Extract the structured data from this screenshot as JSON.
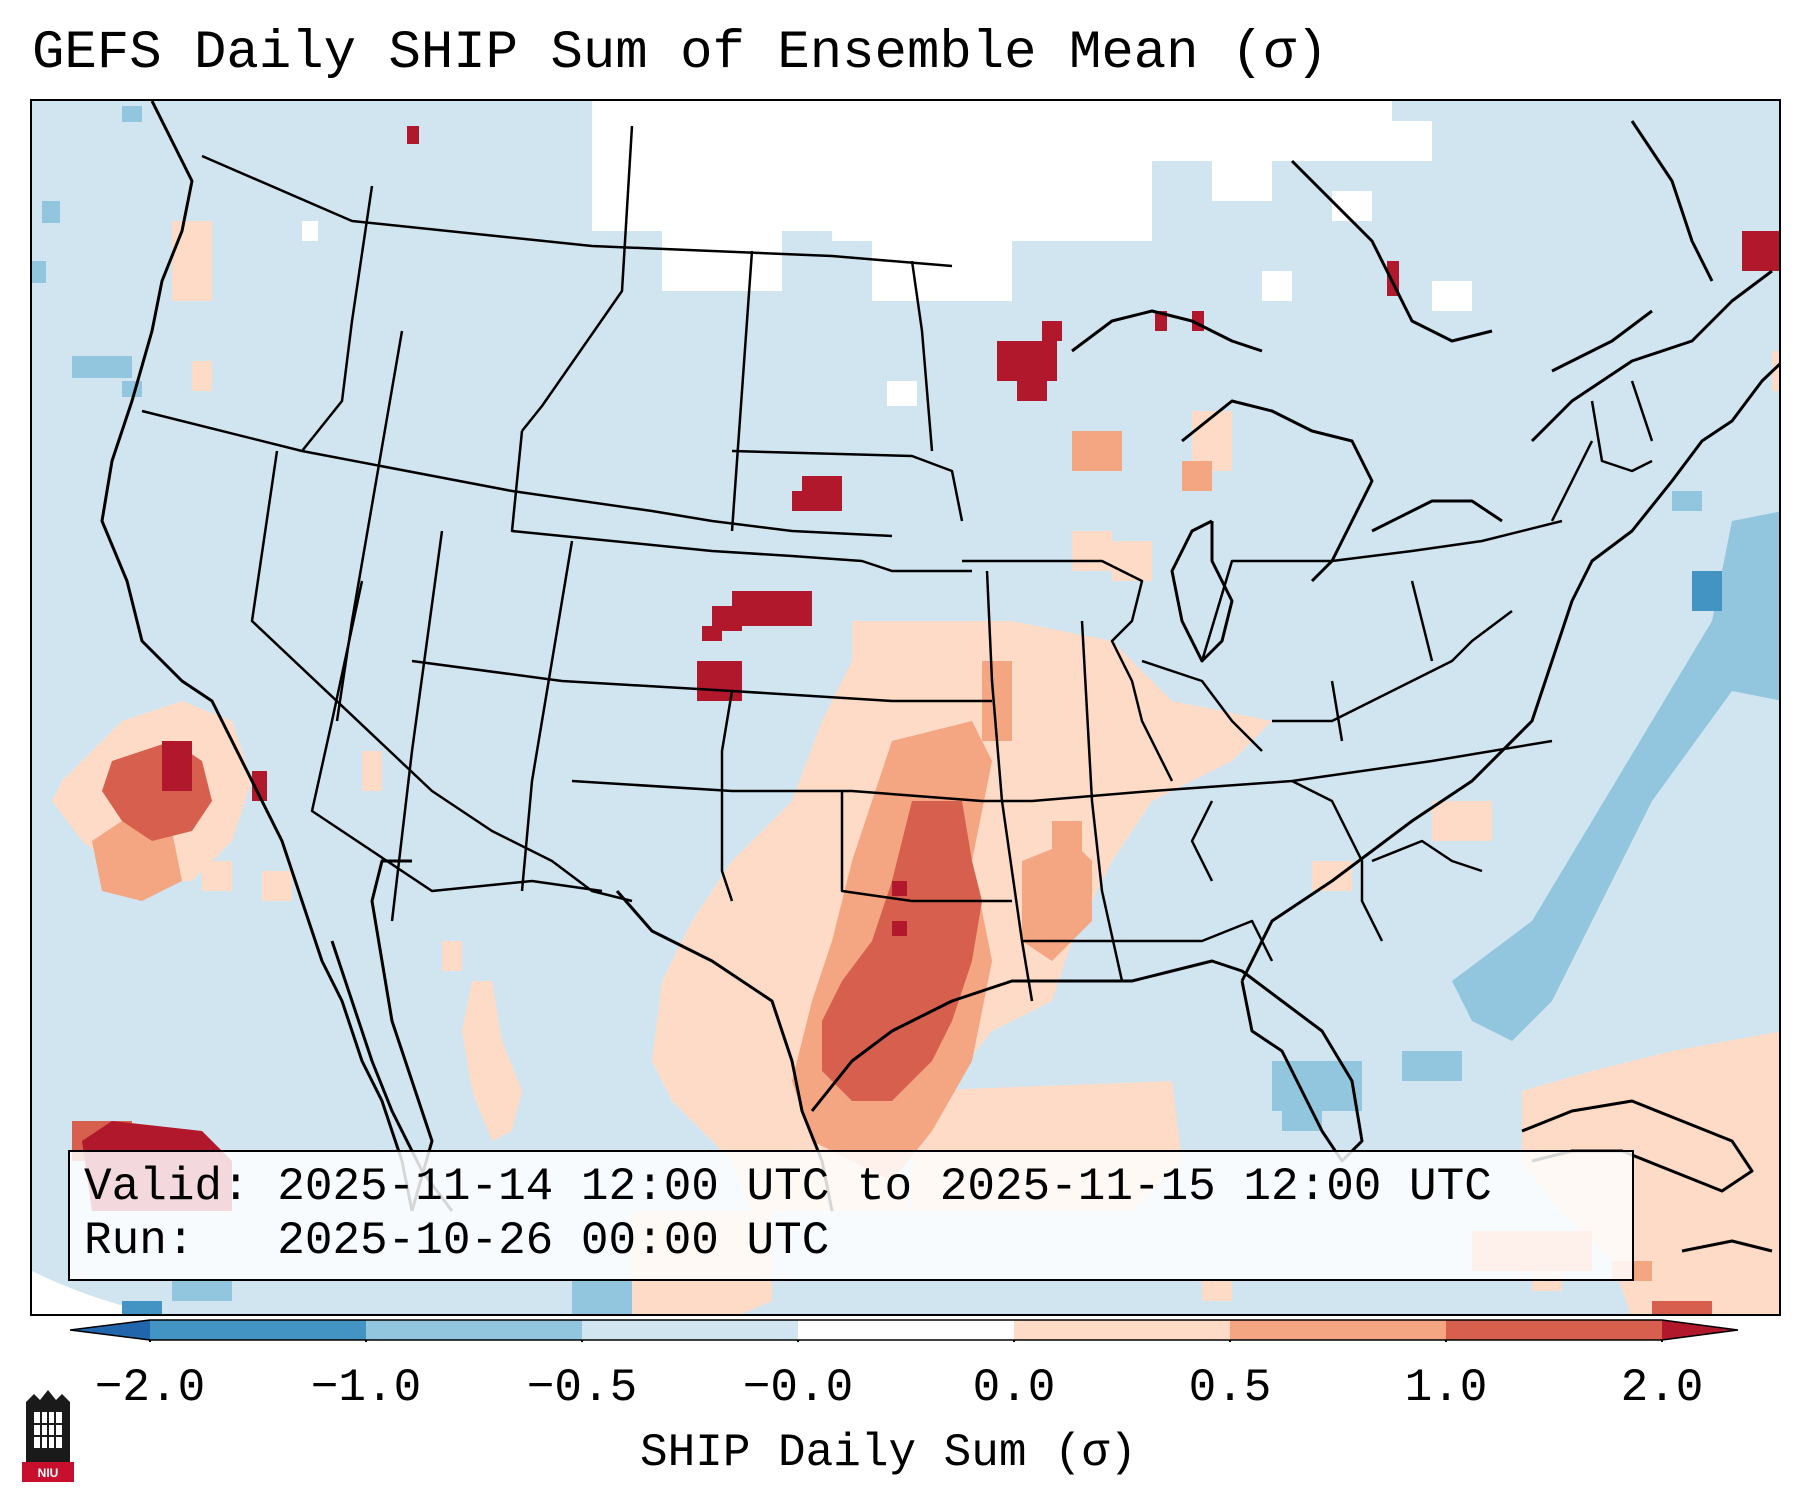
{
  "title": "GEFS Daily SHIP Sum of Ensemble Mean (σ)",
  "info": {
    "valid_line": "Valid: 2025-11-14 12:00 UTC to 2025-11-15 12:00 UTC",
    "run_line": "Run:   2025-10-26 00:00 UTC"
  },
  "colorbar": {
    "label": "SHIP Daily Sum (σ)",
    "ticks": [
      "−2.0",
      "−1.0",
      "−0.5",
      "−0.0",
      "0.0",
      "0.5",
      "1.0",
      "2.0"
    ],
    "bins": [
      {
        "range": "< -2.0",
        "color": "#2166ac"
      },
      {
        "range": "-2.0 to -1.0",
        "color": "#4393c3"
      },
      {
        "range": "-1.0 to -0.5",
        "color": "#92c5de"
      },
      {
        "range": "-0.5 to -0.0",
        "color": "#d1e5f0"
      },
      {
        "range": "-0.0 to 0.0",
        "color": "#ffffff"
      },
      {
        "range": "0.0 to 0.5",
        "color": "#fddbc7"
      },
      {
        "range": "0.5 to 1.0",
        "color": "#f4a582"
      },
      {
        "range": "1.0 to 2.0",
        "color": "#d6604d"
      },
      {
        "range": "> 2.0",
        "color": "#b2182b"
      }
    ]
  },
  "logo": {
    "text": "NIU",
    "icon": "niu-tower-icon"
  }
}
